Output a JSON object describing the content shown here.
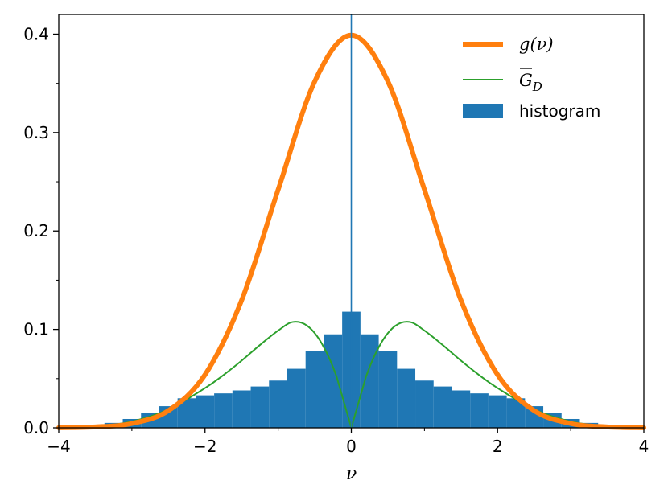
{
  "chart_data": {
    "type": "line",
    "title": "",
    "xlabel": "ν",
    "ylabel": "",
    "xlim": [
      -4,
      4
    ],
    "ylim": [
      0,
      0.42
    ],
    "x_ticks": [
      -4,
      -2,
      0,
      2,
      4
    ],
    "x_tick_labels": [
      "−4",
      "−2",
      "0",
      "2",
      "4"
    ],
    "y_ticks": [
      0.0,
      0.1,
      0.2,
      0.3,
      0.4
    ],
    "y_tick_labels": [
      "0.0",
      "0.1",
      "0.2",
      "0.3",
      "0.4"
    ],
    "grid": false,
    "legend_position": "top-right",
    "vertical_line_x": 0,
    "series": [
      {
        "name": "g(ν)",
        "kind": "line",
        "color": "#ff7f0e",
        "x": [
          -4,
          -3.5,
          -3,
          -2.5,
          -2,
          -1.5,
          -1,
          -0.5,
          0,
          0.5,
          1,
          1.5,
          2,
          2.5,
          3,
          3.5,
          4
        ],
        "y": [
          0.0001,
          0.0009,
          0.0044,
          0.0175,
          0.054,
          0.1295,
          0.242,
          0.352,
          0.399,
          0.352,
          0.242,
          0.1295,
          0.054,
          0.0175,
          0.0044,
          0.0009,
          0.0001
        ]
      },
      {
        "name": "G̅_D",
        "kind": "line",
        "color": "#2ca02c",
        "x": [
          -4,
          -3.5,
          -3,
          -2.5,
          -2,
          -1.75,
          -1.5,
          -1.25,
          -1,
          -0.8,
          -0.6,
          -0.4,
          -0.2,
          0,
          0.2,
          0.4,
          0.6,
          0.8,
          1,
          1.25,
          1.5,
          1.75,
          2,
          2.5,
          3,
          3.5,
          4
        ],
        "y": [
          0.0003,
          0.0016,
          0.0065,
          0.0188,
          0.0404,
          0.0535,
          0.0682,
          0.0841,
          0.0988,
          0.1075,
          0.1035,
          0.0852,
          0.0518,
          0.0,
          0.0518,
          0.0852,
          0.1035,
          0.1075,
          0.0988,
          0.0841,
          0.0682,
          0.0535,
          0.0404,
          0.0188,
          0.0065,
          0.0016,
          0.0003
        ]
      },
      {
        "name": "histogram",
        "kind": "bar",
        "color": "#1f77b4",
        "x": [
          -3.5,
          -3.25,
          -3.0,
          -2.75,
          -2.5,
          -2.25,
          -2.0,
          -1.75,
          -1.5,
          -1.25,
          -1.0,
          -0.75,
          -0.5,
          -0.25,
          0.0,
          0.25,
          0.5,
          0.75,
          1.0,
          1.25,
          1.5,
          1.75,
          2.0,
          2.25,
          2.5,
          2.75,
          3.0,
          3.25,
          3.5
        ],
        "y": [
          0.002,
          0.005,
          0.009,
          0.015,
          0.022,
          0.03,
          0.033,
          0.035,
          0.038,
          0.042,
          0.048,
          0.06,
          0.078,
          0.095,
          0.118,
          0.095,
          0.078,
          0.06,
          0.048,
          0.042,
          0.038,
          0.035,
          0.033,
          0.03,
          0.022,
          0.015,
          0.009,
          0.005,
          0.002
        ]
      }
    ]
  }
}
